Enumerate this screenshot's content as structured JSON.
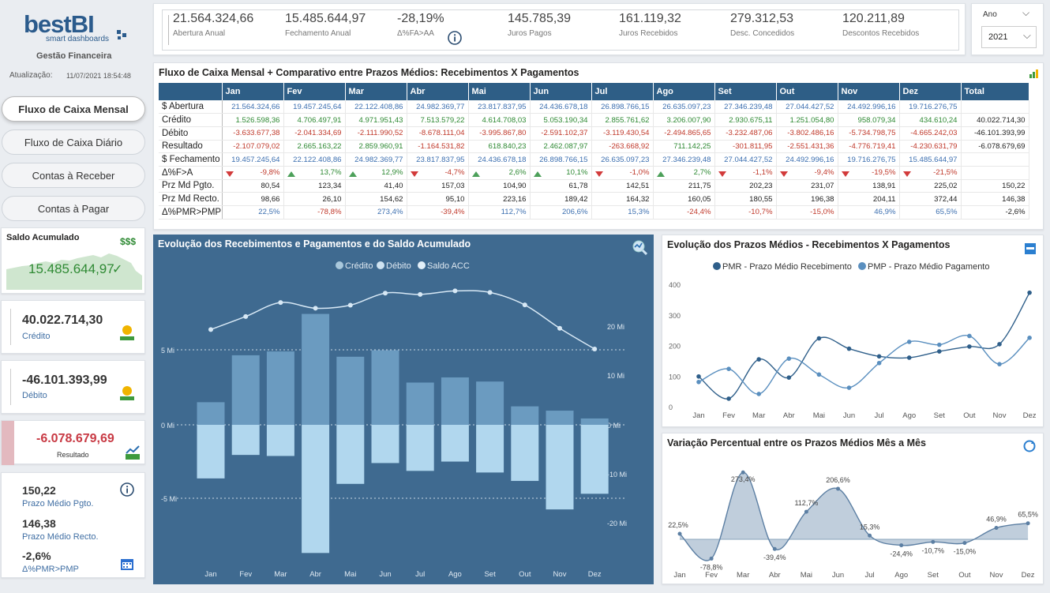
{
  "brand": {
    "logo_main": "bestBI",
    "logo_sub": "smart dashboards",
    "subtitle": "Gestão Financeira",
    "update_label": "Atualização:",
    "update_value": "11/07/2021 18:54:48"
  },
  "nav": [
    {
      "label": "Fluxo de Caixa Mensal",
      "active": true
    },
    {
      "label": "Fluxo de Caixa Diário"
    },
    {
      "label": "Contas à Receber"
    },
    {
      "label": "Contas à Pagar"
    }
  ],
  "saldo": {
    "title": "Saldo Acumulado",
    "value": "15.485.644,97",
    "icon": "money-bag-icon"
  },
  "credito": {
    "value": "40.022.714,30",
    "label": "Crédito"
  },
  "debito": {
    "value": "-46.101.393,99",
    "label": "Débito"
  },
  "resultado": {
    "value": "-6.078.679,69",
    "label": "Resultado"
  },
  "prazos": {
    "pgto_value": "150,22",
    "pgto_label": "Prazo Médio Pgto.",
    "recto_value": "146,38",
    "recto_label": "Prazo Médio Recto.",
    "var_value": "-2,6%",
    "var_label": "Δ%PMR>PMP"
  },
  "kpis": [
    {
      "value": "21.564.324,66",
      "label": "Abertura Anual"
    },
    {
      "value": "15.485.644,97",
      "label": "Fechamento Anual"
    },
    {
      "value": "-28,19%",
      "label": "Δ%FA>AA"
    },
    {
      "value": "145.785,39",
      "label": "Juros Pagos"
    },
    {
      "value": "161.119,32",
      "label": "Juros Recebidos"
    },
    {
      "value": "279.312,53",
      "label": "Desc. Concedidos"
    },
    {
      "value": "120.211,89",
      "label": "Descontos Recebidos"
    }
  ],
  "filter": {
    "label": "Ano",
    "value": "2021"
  },
  "table": {
    "title": "Fluxo de Caixa Mensal + Comparativo entre Prazos Médios: Recebimentos X Pagamentos",
    "headers": [
      "",
      "Jan",
      "Fev",
      "Mar",
      "Abr",
      "Mai",
      "Jun",
      "Jul",
      "Ago",
      "Set",
      "Out",
      "Nov",
      "Dez",
      "Total"
    ],
    "rows": [
      {
        "label": "$ Abertura",
        "cells": [
          "21.564.324,66",
          "19.457.245,64",
          "22.122.408,86",
          "24.982.369,77",
          "23.817.837,95",
          "24.436.678,18",
          "26.898.766,15",
          "26.635.097,23",
          "27.346.239,48",
          "27.044.427,52",
          "24.492.996,16",
          "19.716.276,75",
          ""
        ],
        "cls": "blu"
      },
      {
        "label": "Crédito",
        "cells": [
          "1.526.598,36",
          "4.706.497,91",
          "4.971.951,43",
          "7.513.579,22",
          "4.614.708,03",
          "5.053.190,34",
          "2.855.761,62",
          "3.206.007,90",
          "2.930.675,11",
          "1.251.054,80",
          "958.079,34",
          "434.610,24",
          "40.022.714,30"
        ],
        "cls": "pos"
      },
      {
        "label": "Débito",
        "cells": [
          "-3.633.677,38",
          "-2.041.334,69",
          "-2.111.990,52",
          "-8.678.111,04",
          "-3.995.867,80",
          "-2.591.102,37",
          "-3.119.430,54",
          "-2.494.865,65",
          "-3.232.487,06",
          "-3.802.486,16",
          "-5.734.798,75",
          "-4.665.242,03",
          "-46.101.393,99"
        ],
        "cls": "neg"
      },
      {
        "label": "Resultado",
        "cells": [
          "-2.107.079,02",
          "2.665.163,22",
          "2.859.960,91",
          "-1.164.531,82",
          "618.840,23",
          "2.462.087,97",
          "-263.668,92",
          "711.142,25",
          "-301.811,95",
          "-2.551.431,36",
          "-4.776.719,41",
          "-4.230.631,79",
          "-6.078.679,69"
        ],
        "cls": "mix"
      },
      {
        "label": "$ Fechamento",
        "cells": [
          "19.457.245,64",
          "22.122.408,86",
          "24.982.369,77",
          "23.817.837,95",
          "24.436.678,18",
          "26.898.766,15",
          "26.635.097,23",
          "27.346.239,48",
          "27.044.427,52",
          "24.492.996,16",
          "19.716.276,75",
          "15.485.644,97",
          ""
        ],
        "cls": "blu"
      },
      {
        "label": "Δ%F>A",
        "cells": [
          "-9,8%",
          "13,7%",
          "12,9%",
          "-4,7%",
          "2,6%",
          "10,1%",
          "-1,0%",
          "2,7%",
          "-1,1%",
          "-9,4%",
          "-19,5%",
          "-21,5%",
          ""
        ],
        "cls": "arrow"
      },
      {
        "label": "Prz Md Pgto.",
        "cells": [
          "80,54",
          "123,34",
          "41,40",
          "157,03",
          "104,90",
          "61,78",
          "142,51",
          "211,75",
          "202,23",
          "231,07",
          "138,91",
          "225,02",
          "150,22"
        ],
        "cls": "blk"
      },
      {
        "label": "Prz Md Recto.",
        "cells": [
          "98,66",
          "26,10",
          "154,62",
          "95,10",
          "223,16",
          "189,42",
          "164,32",
          "160,05",
          "180,55",
          "196,38",
          "204,11",
          "372,44",
          "146,38"
        ],
        "cls": "blk"
      },
      {
        "label": "Δ%PMR>PMP",
        "cells": [
          "22,5%",
          "-78,8%",
          "273,4%",
          "-39,4%",
          "112,7%",
          "206,6%",
          "15,3%",
          "-24,4%",
          "-10,7%",
          "-15,0%",
          "46,9%",
          "65,5%",
          "-2,6%"
        ],
        "cls": "mix2"
      }
    ]
  },
  "months": [
    "Jan",
    "Fev",
    "Mar",
    "Abr",
    "Mai",
    "Jun",
    "Jul",
    "Ago",
    "Set",
    "Out",
    "Nov",
    "Dez"
  ],
  "chart_data": [
    {
      "type": "bar",
      "title": "Evolução dos Recebimentos e Pagamentos e do Saldo Acumulado",
      "categories": [
        "Jan",
        "Fev",
        "Mar",
        "Abr",
        "Mai",
        "Jun",
        "Jul",
        "Ago",
        "Set",
        "Out",
        "Nov",
        "Dez"
      ],
      "series": [
        {
          "name": "Crédito",
          "values": [
            1.53,
            4.71,
            4.97,
            7.51,
            4.61,
            5.05,
            2.86,
            3.21,
            2.93,
            1.25,
            0.96,
            0.43
          ]
        },
        {
          "name": "Débito",
          "values": [
            -3.63,
            -2.04,
            -2.11,
            -8.68,
            -4.0,
            -2.59,
            -3.12,
            -2.49,
            -3.23,
            -3.8,
            -5.73,
            -4.67
          ]
        },
        {
          "name": "Saldo ACC",
          "values": [
            19.46,
            22.12,
            24.98,
            23.82,
            24.44,
            26.9,
            26.64,
            27.35,
            27.04,
            24.49,
            19.72,
            15.49
          ]
        }
      ],
      "left_ticks": [
        "5 Mi",
        "0 Mi",
        "-5 Mi"
      ],
      "right_ticks": [
        "20 Mi",
        "10 Mi",
        "0 Mi",
        "-10 Mi",
        "-20 Mi"
      ],
      "legend": "top"
    },
    {
      "type": "line",
      "title": "Evolução dos Prazos Médios - Recebimentos X Pagamentos",
      "categories": [
        "Jan",
        "Fev",
        "Mar",
        "Abr",
        "Mai",
        "Jun",
        "Jul",
        "Ago",
        "Set",
        "Out",
        "Nov",
        "Dez"
      ],
      "series": [
        {
          "name": "PMR - Prazo Médio Recebimento",
          "values": [
            98.66,
            26.1,
            154.62,
            95.1,
            223.16,
            189.42,
            164.32,
            160.05,
            180.55,
            196.38,
            204.11,
            372.44
          ]
        },
        {
          "name": "PMP - Prazo Médio Pagamento",
          "values": [
            80.54,
            123.34,
            41.4,
            157.03,
            104.9,
            61.78,
            142.51,
            211.75,
            202.23,
            231.07,
            138.91,
            225.02
          ]
        }
      ],
      "yticks": [
        "400",
        "300",
        "200",
        "100",
        "0"
      ],
      "ylim": [
        0,
        400
      ],
      "legend": "top"
    },
    {
      "type": "area",
      "title": "Variação Percentual entre os Prazos Médios Mês a Mês",
      "categories": [
        "Jan",
        "Fev",
        "Mar",
        "Abr",
        "Mai",
        "Jun",
        "Jul",
        "Ago",
        "Set",
        "Out",
        "Nov",
        "Dez"
      ],
      "values": [
        22.5,
        -78.8,
        273.4,
        -39.4,
        112.7,
        206.6,
        15.3,
        -24.4,
        -10.7,
        -15.0,
        46.9,
        65.5
      ],
      "labels": [
        "22,5%",
        "-78,8%",
        "273,4%",
        "-39,4%",
        "112,7%",
        "206,6%",
        "15,3%",
        "-24,4%",
        "-10,7%",
        "-15,0%",
        "46,9%",
        "65,5%"
      ]
    }
  ]
}
